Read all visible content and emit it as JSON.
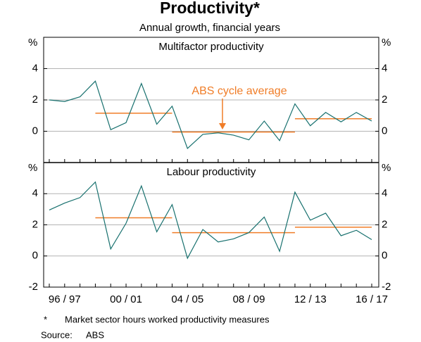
{
  "title": "Productivity*",
  "subtitle": "Annual growth, financial years",
  "notes": [
    {
      "marker": "*",
      "text": "Market sector hours worked productivity measures"
    }
  ],
  "source": {
    "label": "Source:",
    "text": "ABS"
  },
  "chart_data": [
    {
      "type": "line",
      "title": "Multifactor productivity",
      "y_unit": "%",
      "categories": [
        null,
        "96 / 97",
        null,
        null,
        null,
        "00 / 01",
        null,
        null,
        null,
        "04 / 05",
        null,
        null,
        null,
        "08 / 09",
        null,
        null,
        null,
        "12 / 13",
        null,
        null,
        null,
        "16 / 17"
      ],
      "series": [
        {
          "color": "#17706e",
          "values": [
            2.0,
            1.9,
            2.2,
            3.2,
            0.1,
            0.55,
            3.05,
            0.45,
            1.6,
            -1.1,
            -0.2,
            -0.1,
            -0.25,
            -0.55,
            0.65,
            -0.6,
            1.75,
            0.35,
            1.2,
            0.6,
            1.2,
            0.65
          ]
        }
      ],
      "averages": {
        "color": "#f07d28",
        "series": [
          [
            null,
            null,
            null,
            1.15,
            1.15,
            1.15,
            1.15,
            1.15,
            1.15,
            null,
            null,
            null,
            null,
            null,
            null,
            null,
            null,
            null,
            null,
            null,
            null,
            null
          ],
          [
            null,
            null,
            null,
            null,
            null,
            null,
            null,
            null,
            -0.05,
            -0.05,
            -0.05,
            -0.05,
            -0.05,
            -0.05,
            -0.05,
            -0.05,
            -0.05,
            null,
            null,
            null,
            null,
            null
          ],
          [
            null,
            null,
            null,
            null,
            null,
            null,
            null,
            null,
            null,
            null,
            null,
            null,
            null,
            null,
            null,
            null,
            0.8,
            0.8,
            0.8,
            0.8,
            0.8,
            0.8
          ]
        ]
      },
      "annotation": {
        "text": "ABS cycle average",
        "color": "#f07d28"
      },
      "ylim": [
        -2,
        6
      ],
      "yticks": [
        0,
        2,
        4
      ],
      "grid": true
    },
    {
      "type": "line",
      "title": "Labour productivity",
      "y_unit": "%",
      "categories": [
        null,
        "96 / 97",
        null,
        null,
        null,
        "00 / 01",
        null,
        null,
        null,
        "04 / 05",
        null,
        null,
        null,
        "08 / 09",
        null,
        null,
        null,
        "12 / 13",
        null,
        null,
        null,
        "16 / 17"
      ],
      "series": [
        {
          "color": "#17706e",
          "values": [
            2.95,
            3.4,
            3.75,
            4.75,
            0.45,
            2.1,
            4.5,
            1.55,
            3.3,
            -0.15,
            1.7,
            0.9,
            1.1,
            1.5,
            2.5,
            0.3,
            4.1,
            2.3,
            2.75,
            1.3,
            1.65,
            1.05
          ]
        }
      ],
      "averages": {
        "color": "#f07d28",
        "series": [
          [
            null,
            null,
            null,
            2.45,
            2.45,
            2.45,
            2.45,
            2.45,
            2.45,
            null,
            null,
            null,
            null,
            null,
            null,
            null,
            null,
            null,
            null,
            null,
            null,
            null
          ],
          [
            null,
            null,
            null,
            null,
            null,
            null,
            null,
            null,
            1.5,
            1.5,
            1.5,
            1.5,
            1.5,
            1.5,
            1.5,
            1.5,
            1.5,
            null,
            null,
            null,
            null,
            null
          ],
          [
            null,
            null,
            null,
            null,
            null,
            null,
            null,
            null,
            null,
            null,
            null,
            null,
            null,
            null,
            null,
            null,
            1.85,
            1.85,
            1.85,
            1.85,
            1.85,
            1.85
          ]
        ]
      },
      "ylim": [
        -2,
        6
      ],
      "yticks": [
        -2,
        0,
        2,
        4
      ],
      "grid": true
    }
  ]
}
